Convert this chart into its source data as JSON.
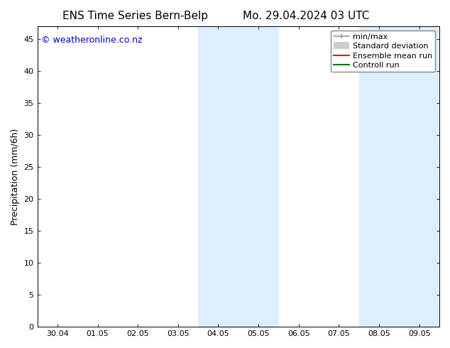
{
  "title_left": "ENS Time Series Bern-Belp",
  "title_right": "Mo. 29.04.2024 03 UTC",
  "ylabel": "Precipitation (mm/6h)",
  "watermark": "© weatheronline.co.nz",
  "watermark_color": "#0000cc",
  "x_tick_labels": [
    "30.04",
    "01.05",
    "02.05",
    "03.05",
    "04.05",
    "05.05",
    "06.05",
    "07.05",
    "08.05",
    "09.05"
  ],
  "x_tick_positions": [
    0,
    1,
    2,
    3,
    4,
    5,
    6,
    7,
    8,
    9
  ],
  "ylim": [
    0,
    47
  ],
  "yticks": [
    0,
    5,
    10,
    15,
    20,
    25,
    30,
    35,
    40,
    45
  ],
  "xlim": [
    -0.5,
    9.5
  ],
  "shaded_regions": [
    {
      "x_start": 3.5,
      "x_end": 5.5,
      "color": "#ddeeff"
    },
    {
      "x_start": 7.5,
      "x_end": 9.5,
      "color": "#ddeeff"
    }
  ],
  "legend_entries": [
    {
      "label": "min/max",
      "color": "#999999",
      "lw": 1.2,
      "style": "line_with_caps"
    },
    {
      "label": "Standard deviation",
      "color": "#cccccc",
      "lw": 7,
      "style": "thick"
    },
    {
      "label": "Ensemble mean run",
      "color": "#ff0000",
      "lw": 1.5,
      "style": "line"
    },
    {
      "label": "Controll run",
      "color": "#007700",
      "lw": 1.5,
      "style": "line"
    }
  ],
  "background_color": "#ffffff",
  "plot_bg_color": "#ffffff",
  "border_color": "#000000",
  "title_fontsize": 11,
  "axis_fontsize": 9,
  "tick_fontsize": 8,
  "watermark_fontsize": 9,
  "legend_fontsize": 8
}
